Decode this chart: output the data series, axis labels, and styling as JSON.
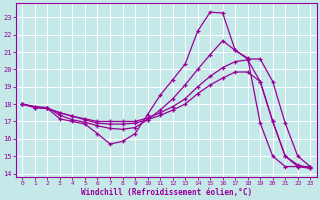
{
  "xlabel": "Windchill (Refroidissement éolien,°C)",
  "bg_color": "#c5e8e8",
  "line_color": "#990099",
  "grid_color": "#ffffff",
  "xlim": [
    -0.5,
    23.5
  ],
  "ylim": [
    13.8,
    23.8
  ],
  "yticks": [
    14,
    15,
    16,
    17,
    18,
    19,
    20,
    21,
    22,
    23
  ],
  "xticks": [
    0,
    1,
    2,
    3,
    4,
    5,
    6,
    7,
    8,
    9,
    10,
    11,
    12,
    13,
    14,
    15,
    16,
    17,
    18,
    19,
    20,
    21,
    22,
    23
  ],
  "lines": [
    {
      "x": [
        0,
        1,
        2,
        3,
        4,
        5,
        6,
        7,
        8,
        9,
        10,
        11,
        12,
        13,
        14,
        15,
        16,
        17,
        18,
        19,
        20,
        21,
        22,
        23
      ],
      "y": [
        18.0,
        17.85,
        17.75,
        17.15,
        17.0,
        16.85,
        16.3,
        15.7,
        15.85,
        16.3,
        17.4,
        18.5,
        19.4,
        20.3,
        22.2,
        23.3,
        23.25,
        21.1,
        20.65,
        16.9,
        15.0,
        14.4,
        14.4,
        14.4
      ]
    },
    {
      "x": [
        0,
        1,
        2,
        3,
        4,
        5,
        6,
        7,
        8,
        9,
        10,
        11,
        12,
        13,
        14,
        15,
        16,
        17,
        18,
        19,
        20,
        21,
        22,
        23
      ],
      "y": [
        18.0,
        17.85,
        17.8,
        17.35,
        17.1,
        16.95,
        16.75,
        16.6,
        16.55,
        16.65,
        17.1,
        17.65,
        18.3,
        19.1,
        20.0,
        20.85,
        21.65,
        21.1,
        20.6,
        20.6,
        19.3,
        16.9,
        15.0,
        14.4
      ]
    },
    {
      "x": [
        0,
        1,
        2,
        3,
        4,
        5,
        6,
        7,
        8,
        9,
        10,
        11,
        12,
        13,
        14,
        15,
        16,
        17,
        18,
        19,
        20,
        21,
        22,
        23
      ],
      "y": [
        18.0,
        17.8,
        17.75,
        17.5,
        17.3,
        17.15,
        17.0,
        17.0,
        17.0,
        17.0,
        17.2,
        17.5,
        17.85,
        18.3,
        19.0,
        19.6,
        20.1,
        20.45,
        20.55,
        19.3,
        17.0,
        15.0,
        14.5,
        14.3
      ]
    },
    {
      "x": [
        0,
        1,
        2,
        3,
        4,
        5,
        6,
        7,
        8,
        9,
        10,
        11,
        12,
        13,
        14,
        15,
        16,
        17,
        18,
        19,
        20,
        21,
        22,
        23
      ],
      "y": [
        18.0,
        17.8,
        17.75,
        17.5,
        17.3,
        17.1,
        16.9,
        16.85,
        16.85,
        16.9,
        17.1,
        17.35,
        17.65,
        18.0,
        18.6,
        19.1,
        19.5,
        19.85,
        19.85,
        19.3,
        17.0,
        15.0,
        14.4,
        14.3
      ]
    }
  ]
}
